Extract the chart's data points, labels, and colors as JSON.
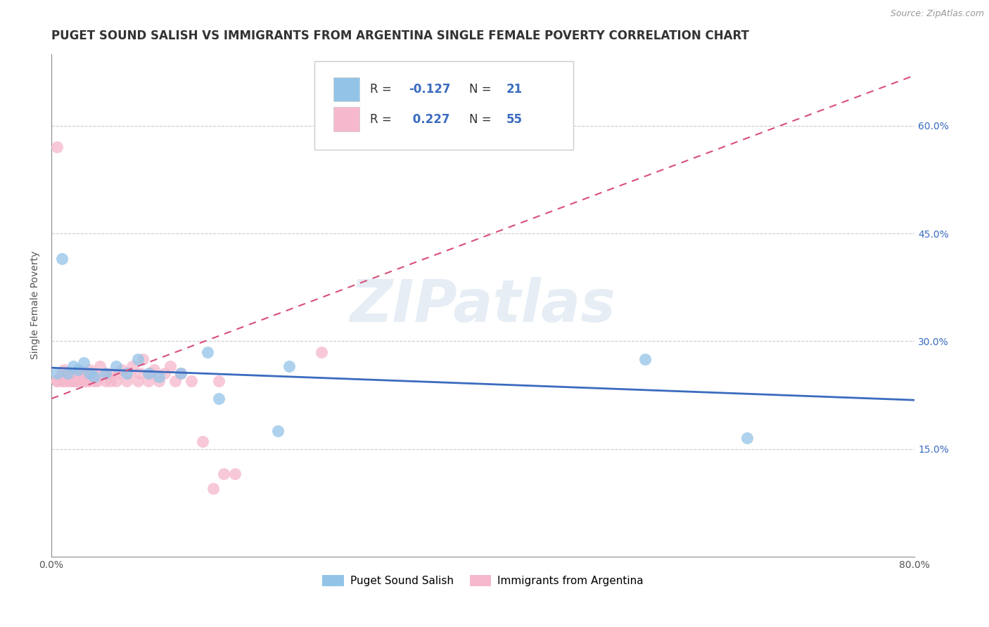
{
  "title": "PUGET SOUND SALISH VS IMMIGRANTS FROM ARGENTINA SINGLE FEMALE POVERTY CORRELATION CHART",
  "source": "Source: ZipAtlas.com",
  "ylabel": "Single Female Poverty",
  "xlim": [
    0.0,
    0.8
  ],
  "ylim": [
    0.0,
    0.7
  ],
  "xtick_positions": [
    0.0,
    0.8
  ],
  "xtick_labels": [
    "0.0%",
    "80.0%"
  ],
  "ytick_values": [
    0.15,
    0.3,
    0.45,
    0.6
  ],
  "ytick_labels": [
    "15.0%",
    "30.0%",
    "45.0%",
    "60.0%"
  ],
  "background_color": "#ffffff",
  "watermark_text": "ZIPatlas",
  "color_blue": "#93c4e8",
  "color_pink": "#f5b8cc",
  "line_blue": "#3a6bbf",
  "line_pink": "#d94f7a",
  "grid_color": "#cccccc",
  "title_color": "#333333",
  "right_tick_color": "#3a6bbf",
  "legend_text_color": "#333333",
  "legend_value_color": "#3a6bbf",
  "blue_x": [
    0.005,
    0.01,
    0.015,
    0.02,
    0.025,
    0.03,
    0.035,
    0.04,
    0.05,
    0.06,
    0.07,
    0.08,
    0.09,
    0.1,
    0.12,
    0.145,
    0.155,
    0.21,
    0.22,
    0.55,
    0.645
  ],
  "blue_y": [
    0.255,
    0.415,
    0.255,
    0.265,
    0.26,
    0.27,
    0.255,
    0.25,
    0.255,
    0.265,
    0.255,
    0.275,
    0.255,
    0.25,
    0.255,
    0.285,
    0.22,
    0.175,
    0.265,
    0.275,
    0.165
  ],
  "pink_x": [
    0.005,
    0.005,
    0.008,
    0.01,
    0.01,
    0.012,
    0.012,
    0.015,
    0.015,
    0.018,
    0.02,
    0.02,
    0.022,
    0.025,
    0.025,
    0.028,
    0.03,
    0.03,
    0.032,
    0.035,
    0.035,
    0.038,
    0.04,
    0.04,
    0.042,
    0.045,
    0.05,
    0.05,
    0.055,
    0.055,
    0.06,
    0.062,
    0.065,
    0.07,
    0.072,
    0.075,
    0.08,
    0.082,
    0.085,
    0.09,
    0.092,
    0.095,
    0.1,
    0.105,
    0.11,
    0.115,
    0.12,
    0.13,
    0.14,
    0.15,
    0.155,
    0.16,
    0.17,
    0.25,
    0.005
  ],
  "pink_y": [
    0.245,
    0.245,
    0.25,
    0.245,
    0.255,
    0.245,
    0.26,
    0.245,
    0.255,
    0.245,
    0.245,
    0.255,
    0.245,
    0.245,
    0.255,
    0.255,
    0.245,
    0.255,
    0.245,
    0.245,
    0.26,
    0.255,
    0.245,
    0.255,
    0.245,
    0.265,
    0.245,
    0.255,
    0.245,
    0.255,
    0.245,
    0.255,
    0.26,
    0.245,
    0.255,
    0.265,
    0.245,
    0.255,
    0.275,
    0.245,
    0.255,
    0.26,
    0.245,
    0.255,
    0.265,
    0.245,
    0.255,
    0.245,
    0.16,
    0.095,
    0.245,
    0.115,
    0.115,
    0.285,
    0.57
  ],
  "blue_line_x": [
    0.0,
    0.8
  ],
  "blue_line_y": [
    0.263,
    0.218
  ],
  "pink_line_x": [
    0.0,
    0.8
  ],
  "pink_line_y": [
    0.22,
    0.67
  ],
  "title_fontsize": 12,
  "axis_label_fontsize": 10,
  "tick_fontsize": 10,
  "legend_fontsize": 12
}
